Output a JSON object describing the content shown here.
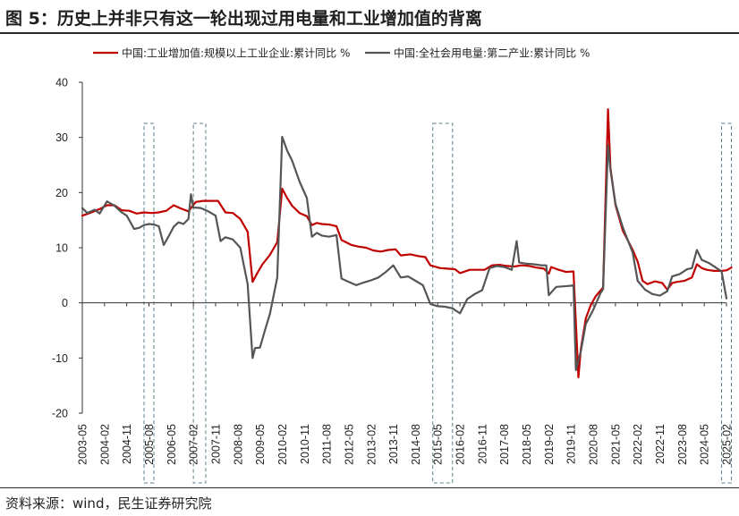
{
  "title": "图 5：历史上并非只有这一轮出现过用电量和工业增加值的背离",
  "source": "资料来源：wind，民生证券研究院",
  "chart_data": {
    "type": "line",
    "ylim": [
      -20,
      40
    ],
    "yticks": [
      -20,
      -10,
      0,
      10,
      20,
      30,
      40
    ],
    "xlim": [
      "2003-05",
      "2025-02"
    ],
    "xticks": [
      "2003-05",
      "2004-02",
      "2004-11",
      "2005-08",
      "2006-05",
      "2007-02",
      "2007-11",
      "2008-08",
      "2009-05",
      "2010-02",
      "2010-11",
      "2011-08",
      "2012-05",
      "2013-02",
      "2013-11",
      "2014-08",
      "2015-05",
      "2016-02",
      "2016-11",
      "2017-08",
      "2018-05",
      "2019-02",
      "2019-11",
      "2020-08",
      "2021-05",
      "2022-02",
      "2022-11",
      "2023-08",
      "2024-05",
      "2025-02"
    ],
    "legend_position": "top",
    "grid": false,
    "highlight_periods": [
      [
        "2005-06",
        "2005-10"
      ],
      [
        "2007-02",
        "2007-07"
      ],
      [
        "2015-03",
        "2015-11"
      ],
      [
        "2024-12",
        "2025-04"
      ]
    ],
    "series": [
      {
        "name": "中国:工业增加值:规模以上工业企业:累计同比 %",
        "color": "#c00000",
        "points": [
          [
            "2003-05",
            15.8
          ],
          [
            "2003-08",
            16.3
          ],
          [
            "2003-12",
            17.0
          ],
          [
            "2004-03",
            17.7
          ],
          [
            "2004-06",
            17.7
          ],
          [
            "2004-09",
            16.8
          ],
          [
            "2004-12",
            16.7
          ],
          [
            "2005-03",
            16.2
          ],
          [
            "2005-06",
            16.4
          ],
          [
            "2005-09",
            16.3
          ],
          [
            "2005-12",
            16.4
          ],
          [
            "2006-03",
            16.7
          ],
          [
            "2006-06",
            17.7
          ],
          [
            "2006-09",
            17.1
          ],
          [
            "2006-12",
            16.6
          ],
          [
            "2007-03",
            18.3
          ],
          [
            "2007-06",
            18.5
          ],
          [
            "2007-09",
            18.5
          ],
          [
            "2007-12",
            18.5
          ],
          [
            "2008-03",
            16.4
          ],
          [
            "2008-06",
            16.3
          ],
          [
            "2008-09",
            15.2
          ],
          [
            "2008-12",
            12.9
          ],
          [
            "2009-02",
            3.8
          ],
          [
            "2009-04",
            5.5
          ],
          [
            "2009-06",
            7.0
          ],
          [
            "2009-09",
            8.7
          ],
          [
            "2009-12",
            11.0
          ],
          [
            "2010-02",
            20.7
          ],
          [
            "2010-04",
            19.0
          ],
          [
            "2010-06",
            17.6
          ],
          [
            "2010-09",
            16.3
          ],
          [
            "2010-12",
            15.7
          ],
          [
            "2011-02",
            14.1
          ],
          [
            "2011-04",
            14.5
          ],
          [
            "2011-06",
            14.3
          ],
          [
            "2011-09",
            14.2
          ],
          [
            "2011-12",
            13.9
          ],
          [
            "2012-02",
            11.4
          ],
          [
            "2012-06",
            10.5
          ],
          [
            "2012-09",
            10.2
          ],
          [
            "2012-12",
            10.0
          ],
          [
            "2013-03",
            9.5
          ],
          [
            "2013-06",
            9.3
          ],
          [
            "2013-09",
            9.6
          ],
          [
            "2013-12",
            9.7
          ],
          [
            "2014-02",
            8.6
          ],
          [
            "2014-06",
            8.8
          ],
          [
            "2014-09",
            8.5
          ],
          [
            "2014-12",
            8.3
          ],
          [
            "2015-02",
            6.8
          ],
          [
            "2015-06",
            6.3
          ],
          [
            "2015-09",
            6.2
          ],
          [
            "2015-12",
            6.1
          ],
          [
            "2016-02",
            5.4
          ],
          [
            "2016-06",
            6.0
          ],
          [
            "2016-09",
            6.0
          ],
          [
            "2016-12",
            6.0
          ],
          [
            "2017-03",
            6.8
          ],
          [
            "2017-06",
            6.9
          ],
          [
            "2017-09",
            6.7
          ],
          [
            "2017-12",
            6.6
          ],
          [
            "2018-03",
            6.8
          ],
          [
            "2018-06",
            6.7
          ],
          [
            "2018-09",
            6.4
          ],
          [
            "2018-12",
            6.2
          ],
          [
            "2019-02",
            5.3
          ],
          [
            "2019-03",
            6.5
          ],
          [
            "2019-06",
            6.0
          ],
          [
            "2019-09",
            5.6
          ],
          [
            "2019-12",
            5.7
          ],
          [
            "2020-02",
            -13.5
          ],
          [
            "2020-03",
            -8.4
          ],
          [
            "2020-05",
            -2.8
          ],
          [
            "2020-07",
            -0.4
          ],
          [
            "2020-09",
            1.2
          ],
          [
            "2020-12",
            2.8
          ],
          [
            "2021-02",
            35.1
          ],
          [
            "2021-03",
            24.5
          ],
          [
            "2021-05",
            17.8
          ],
          [
            "2021-08",
            13.1
          ],
          [
            "2021-12",
            9.6
          ],
          [
            "2022-02",
            7.5
          ],
          [
            "2022-04",
            4.0
          ],
          [
            "2022-06",
            3.4
          ],
          [
            "2022-09",
            3.9
          ],
          [
            "2022-12",
            3.6
          ],
          [
            "2023-02",
            2.4
          ],
          [
            "2023-04",
            3.6
          ],
          [
            "2023-06",
            3.8
          ],
          [
            "2023-09",
            4.0
          ],
          [
            "2023-12",
            4.6
          ],
          [
            "2024-02",
            7.0
          ],
          [
            "2024-04",
            6.3
          ],
          [
            "2024-06",
            6.0
          ],
          [
            "2024-09",
            5.8
          ],
          [
            "2024-12",
            5.8
          ],
          [
            "2025-02",
            5.9
          ],
          [
            "2025-04",
            6.4
          ]
        ]
      },
      {
        "name": "中国:全社会用电量:第二产业:累计同比 %",
        "color": "#555555",
        "points": [
          [
            "2003-05",
            17.2
          ],
          [
            "2003-07",
            16.3
          ],
          [
            "2003-10",
            16.9
          ],
          [
            "2003-12",
            16.2
          ],
          [
            "2004-03",
            18.4
          ],
          [
            "2004-06",
            17.6
          ],
          [
            "2004-09",
            16.4
          ],
          [
            "2004-11",
            15.8
          ],
          [
            "2005-02",
            13.4
          ],
          [
            "2005-04",
            13.6
          ],
          [
            "2005-06",
            14.1
          ],
          [
            "2005-08",
            14.3
          ],
          [
            "2005-10",
            14.2
          ],
          [
            "2005-12",
            13.9
          ],
          [
            "2006-02",
            10.5
          ],
          [
            "2006-04",
            12.1
          ],
          [
            "2006-06",
            13.8
          ],
          [
            "2006-08",
            14.6
          ],
          [
            "2006-10",
            14.3
          ],
          [
            "2006-12",
            15.2
          ],
          [
            "2007-01",
            19.7
          ],
          [
            "2007-02",
            17.3
          ],
          [
            "2007-05",
            17.2
          ],
          [
            "2007-08",
            16.6
          ],
          [
            "2007-11",
            15.8
          ],
          [
            "2008-01",
            11.2
          ],
          [
            "2008-03",
            11.9
          ],
          [
            "2008-06",
            11.5
          ],
          [
            "2008-09",
            10.0
          ],
          [
            "2008-12",
            3.4
          ],
          [
            "2009-02",
            -10.0
          ],
          [
            "2009-03",
            -8.2
          ],
          [
            "2009-05",
            -8.1
          ],
          [
            "2009-07",
            -5.0
          ],
          [
            "2009-09",
            -2.0
          ],
          [
            "2009-12",
            4.6
          ],
          [
            "2010-02",
            30.1
          ],
          [
            "2010-04",
            27.6
          ],
          [
            "2010-06",
            25.8
          ],
          [
            "2010-09",
            22.0
          ],
          [
            "2010-12",
            19.0
          ],
          [
            "2011-02",
            12.0
          ],
          [
            "2011-04",
            12.7
          ],
          [
            "2011-06",
            12.2
          ],
          [
            "2011-09",
            12.0
          ],
          [
            "2011-12",
            12.3
          ],
          [
            "2012-02",
            4.4
          ],
          [
            "2012-05",
            3.8
          ],
          [
            "2012-08",
            3.2
          ],
          [
            "2012-11",
            3.7
          ],
          [
            "2013-02",
            4.1
          ],
          [
            "2013-05",
            4.6
          ],
          [
            "2013-08",
            5.6
          ],
          [
            "2013-11",
            6.8
          ],
          [
            "2014-02",
            4.6
          ],
          [
            "2014-05",
            4.8
          ],
          [
            "2014-08",
            4.0
          ],
          [
            "2014-11",
            3.2
          ],
          [
            "2015-02",
            -0.2
          ],
          [
            "2015-05",
            -0.6
          ],
          [
            "2015-08",
            -0.7
          ],
          [
            "2015-11",
            -1.0
          ],
          [
            "2016-02",
            -1.9
          ],
          [
            "2016-05",
            0.7
          ],
          [
            "2016-08",
            1.6
          ],
          [
            "2016-11",
            2.3
          ],
          [
            "2017-02",
            6.3
          ],
          [
            "2017-05",
            6.7
          ],
          [
            "2017-08",
            6.5
          ],
          [
            "2017-11",
            6.0
          ],
          [
            "2018-01",
            11.2
          ],
          [
            "2018-02",
            7.3
          ],
          [
            "2018-05",
            7.1
          ],
          [
            "2018-08",
            7.0
          ],
          [
            "2018-11",
            6.8
          ],
          [
            "2019-01",
            6.8
          ],
          [
            "2019-02",
            1.4
          ],
          [
            "2019-05",
            2.9
          ],
          [
            "2019-08",
            3.0
          ],
          [
            "2019-11",
            3.1
          ],
          [
            "2019-12",
            3.2
          ],
          [
            "2020-01",
            -12.2
          ],
          [
            "2020-03",
            -8.8
          ],
          [
            "2020-05",
            -3.8
          ],
          [
            "2020-08",
            -1.3
          ],
          [
            "2020-11",
            1.8
          ],
          [
            "2020-12",
            2.5
          ],
          [
            "2021-02",
            28.6
          ],
          [
            "2021-03",
            24.1
          ],
          [
            "2021-05",
            18.0
          ],
          [
            "2021-08",
            13.7
          ],
          [
            "2021-12",
            9.1
          ],
          [
            "2022-02",
            4.0
          ],
          [
            "2022-05",
            2.4
          ],
          [
            "2022-08",
            1.6
          ],
          [
            "2022-11",
            1.3
          ],
          [
            "2023-02",
            2.1
          ],
          [
            "2023-04",
            4.8
          ],
          [
            "2023-07",
            5.2
          ],
          [
            "2023-10",
            6.1
          ],
          [
            "2023-12",
            6.3
          ],
          [
            "2024-02",
            9.6
          ],
          [
            "2024-04",
            7.8
          ],
          [
            "2024-07",
            7.2
          ],
          [
            "2024-10",
            6.3
          ],
          [
            "2024-12",
            5.7
          ],
          [
            "2025-02",
            0.8
          ]
        ]
      }
    ]
  }
}
